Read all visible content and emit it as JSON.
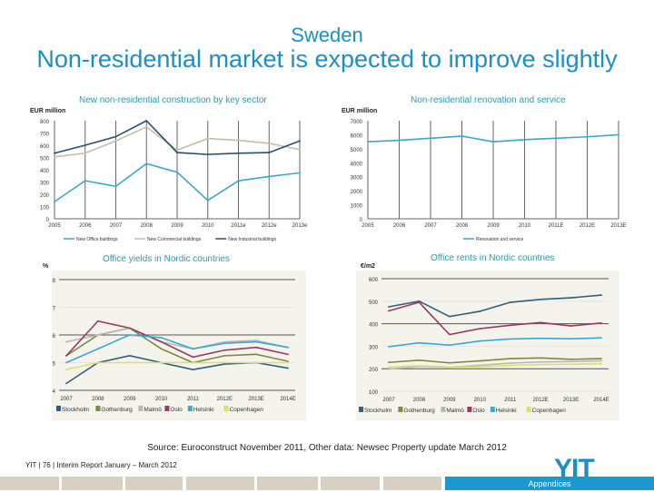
{
  "header": {
    "supertitle": "Sweden",
    "title": "Non-residential market is expected to improve slightly"
  },
  "footer": {
    "source": "Source: Euroconstruct November 2011, Other data: Newsec Property update March 2012",
    "page": "YIT  | 76 | Interim Report January – March 2012",
    "logo": "YIT",
    "tab_label": "Appendices"
  },
  "colors": {
    "accent": "#1a8fc8",
    "tab_active": "#1b97d1",
    "tab": "#d9d0c1"
  },
  "chart_data": [
    {
      "type": "line",
      "title": "New non-residential construction by key sector",
      "ylabel": "EUR million",
      "ylim": [
        0,
        800
      ],
      "yticks": [
        0,
        100,
        200,
        300,
        400,
        500,
        600,
        700,
        800
      ],
      "categories": [
        "2005",
        "2006",
        "2007",
        "2008",
        "2009",
        "2010",
        "2011e",
        "2012e",
        "2013e"
      ],
      "grid": "vertical",
      "legend": "bottom",
      "series": [
        {
          "name": "New Office buildings",
          "color": "#3aa8c8",
          "values": [
            140,
            310,
            265,
            450,
            380,
            150,
            310,
            345,
            375
          ]
        },
        {
          "name": "New Commercial buildings",
          "color": "#c8bca8",
          "values": [
            505,
            535,
            635,
            750,
            560,
            655,
            640,
            615,
            565
          ]
        },
        {
          "name": "New Industrial buildings",
          "color": "#244f70",
          "values": [
            535,
            600,
            670,
            800,
            540,
            525,
            535,
            540,
            635
          ]
        }
      ]
    },
    {
      "type": "line",
      "title": "Non-residential renovation and service",
      "ylabel": "EUR million",
      "ylim": [
        0,
        7000
      ],
      "yticks": [
        0,
        1000,
        2000,
        3000,
        4000,
        5000,
        6000,
        7000
      ],
      "categories": [
        "2005",
        "2006",
        "2007",
        "2008",
        "2009",
        "2010",
        "2011E",
        "2012E",
        "2013E"
      ],
      "grid": "vertical",
      "legend": "bottom",
      "series": [
        {
          "name": "Renovation and service",
          "color": "#3aa8c8",
          "values": [
            5500,
            5600,
            5750,
            5900,
            5500,
            5650,
            5750,
            5850,
            6000
          ]
        }
      ]
    },
    {
      "type": "line",
      "title": "Office yields in Nordic countries",
      "ylabel": "%",
      "ylim": [
        4,
        8
      ],
      "yticks": [
        4,
        5,
        6,
        7,
        8
      ],
      "categories": [
        "2007",
        "2008",
        "2009",
        "2010",
        "2011",
        "2012E",
        "2013E",
        "2014E"
      ],
      "grid": "horizontal",
      "legend": "bottom",
      "series": [
        {
          "name": "Stockholm",
          "color": "#2f5f7a",
          "values": [
            4.25,
            5,
            5.25,
            5,
            4.75,
            4.95,
            5,
            4.8
          ]
        },
        {
          "name": "Gothenburg",
          "color": "#7f8a3a",
          "values": [
            5.25,
            6,
            6.25,
            5.5,
            5,
            5.25,
            5.3,
            5.05
          ]
        },
        {
          "name": "Malmö",
          "color": "#b7b7b7",
          "values": [
            5.75,
            6,
            6.25,
            5.75,
            5.5,
            5.75,
            5.8,
            5.55
          ]
        },
        {
          "name": "Oslo",
          "color": "#9a3a62",
          "values": [
            5.25,
            6.5,
            6.25,
            5.75,
            5.2,
            5.45,
            5.55,
            5.3
          ]
        },
        {
          "name": "Helsinki",
          "color": "#3aa8d8",
          "values": [
            5,
            5.5,
            6,
            5.9,
            5.5,
            5.7,
            5.75,
            5.55
          ]
        },
        {
          "name": "Copenhagen",
          "color": "#dede6e",
          "values": [
            4.75,
            5,
            5,
            5,
            5,
            5,
            5,
            5
          ]
        }
      ]
    },
    {
      "type": "line",
      "title": "Office rents in Nordic countries",
      "ylabel": "€/m2",
      "ylim": [
        100,
        600
      ],
      "yticks": [
        100,
        200,
        300,
        400,
        500,
        600
      ],
      "categories": [
        "2007",
        "2008",
        "2009",
        "2010",
        "2011",
        "2012E",
        "2013E",
        "2014E"
      ],
      "grid": "horizontal",
      "legend": "bottom",
      "series": [
        {
          "name": "Stockholm",
          "color": "#2f5f7a",
          "values": [
            475,
            500,
            432,
            455,
            495,
            508,
            515,
            527
          ]
        },
        {
          "name": "Gothenburg",
          "color": "#7f8a3a",
          "values": [
            228,
            238,
            226,
            235,
            245,
            248,
            242,
            245
          ]
        },
        {
          "name": "Malmö",
          "color": "#b7b7b7",
          "values": [
            198,
            210,
            207,
            215,
            225,
            230,
            232,
            235
          ]
        },
        {
          "name": "Oslo",
          "color": "#9a3a62",
          "values": [
            457,
            495,
            352,
            378,
            393,
            405,
            390,
            403
          ]
        },
        {
          "name": "Helsinki",
          "color": "#3aa8d8",
          "values": [
            298,
            315,
            305,
            323,
            332,
            335,
            333,
            337
          ]
        },
        {
          "name": "Copenhagen",
          "color": "#dede6e",
          "values": [
            207,
            213,
            208,
            208,
            215,
            218,
            220,
            222
          ]
        }
      ]
    }
  ]
}
